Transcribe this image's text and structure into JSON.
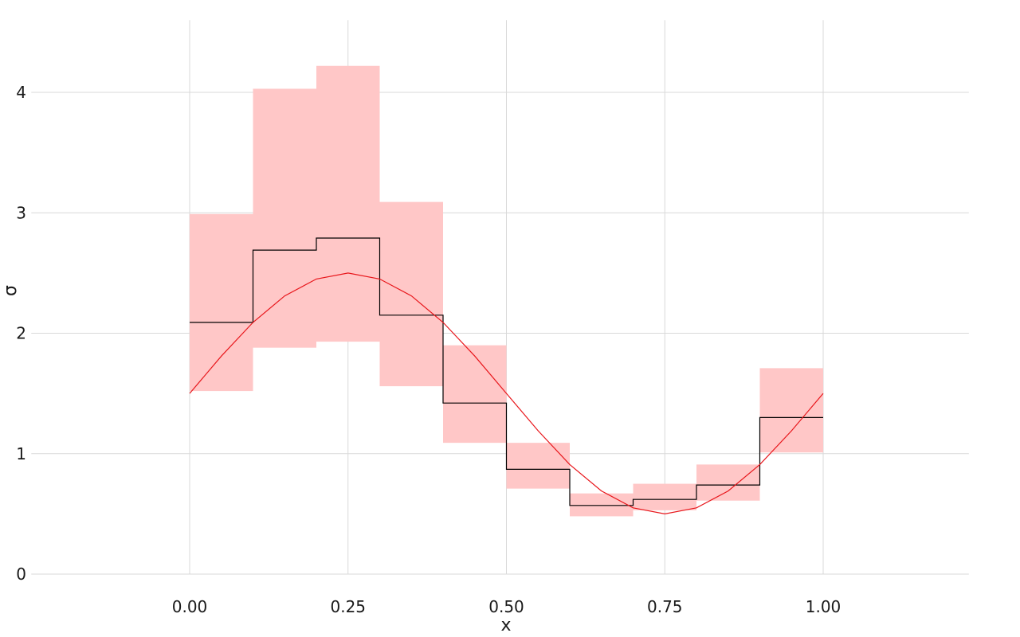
{
  "chart_data": {
    "type": "line",
    "xlabel": "x",
    "ylabel": "σ",
    "xlim": [
      -0.25,
      1.23
    ],
    "ylim": [
      0,
      4.6
    ],
    "grid": true,
    "x_ticks": [
      0.0,
      0.25,
      0.5,
      0.75,
      1.0
    ],
    "x_tick_labels": [
      "0.00",
      "0.25",
      "0.50",
      "0.75",
      "1.00"
    ],
    "y_ticks": [
      0,
      1,
      2,
      3,
      4
    ],
    "y_tick_labels": [
      "0",
      "1",
      "2",
      "3",
      "4"
    ],
    "bins": [
      {
        "x0": 0.0,
        "x1": 0.1,
        "estimate": 2.09,
        "lower": 1.52,
        "upper": 2.99
      },
      {
        "x0": 0.1,
        "x1": 0.2,
        "estimate": 2.69,
        "lower": 1.88,
        "upper": 4.03
      },
      {
        "x0": 0.2,
        "x1": 0.3,
        "estimate": 2.79,
        "lower": 1.93,
        "upper": 4.22
      },
      {
        "x0": 0.3,
        "x1": 0.4,
        "estimate": 2.15,
        "lower": 1.56,
        "upper": 3.09
      },
      {
        "x0": 0.4,
        "x1": 0.5,
        "estimate": 1.42,
        "lower": 1.09,
        "upper": 1.9
      },
      {
        "x0": 0.5,
        "x1": 0.6,
        "estimate": 0.87,
        "lower": 0.71,
        "upper": 1.09
      },
      {
        "x0": 0.6,
        "x1": 0.7,
        "estimate": 0.57,
        "lower": 0.48,
        "upper": 0.67
      },
      {
        "x0": 0.7,
        "x1": 0.8,
        "estimate": 0.62,
        "lower": 0.53,
        "upper": 0.75
      },
      {
        "x0": 0.8,
        "x1": 0.9,
        "estimate": 0.74,
        "lower": 0.61,
        "upper": 0.91
      },
      {
        "x0": 0.9,
        "x1": 1.0,
        "estimate": 1.3,
        "lower": 1.01,
        "upper": 1.71
      }
    ],
    "true_curve": {
      "x": [
        0.0,
        0.05,
        0.1,
        0.15,
        0.2,
        0.25,
        0.3,
        0.35,
        0.4,
        0.45,
        0.5,
        0.55,
        0.6,
        0.65,
        0.7,
        0.75,
        0.8,
        0.85,
        0.9,
        0.95,
        1.0
      ],
      "y": [
        1.5,
        1.81,
        2.09,
        2.31,
        2.45,
        2.5,
        2.45,
        2.31,
        2.09,
        1.81,
        1.5,
        1.19,
        0.91,
        0.69,
        0.55,
        0.5,
        0.55,
        0.69,
        0.91,
        1.19,
        1.5
      ]
    },
    "colors": {
      "band": "#ffc7c7",
      "estimate_line": "#000000",
      "true_curve": "#e8161b",
      "grid": "#d9d9d9"
    }
  }
}
